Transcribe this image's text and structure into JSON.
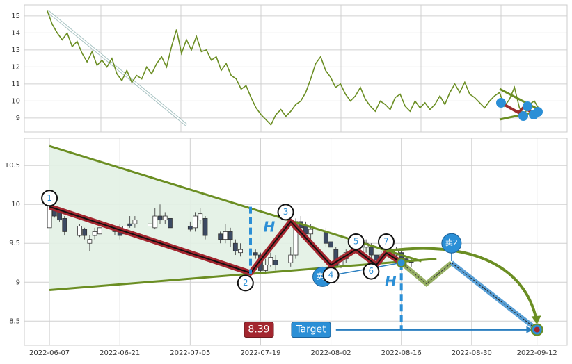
{
  "chart_data": [
    {
      "type": "line",
      "color": "#6b8e23",
      "ylim": [
        8.18,
        15.65
      ],
      "yticks": [
        9,
        10,
        11,
        12,
        13,
        14,
        15
      ],
      "grid": true,
      "values": [
        15.3,
        14.5,
        14.0,
        13.6,
        14.0,
        13.2,
        13.5,
        12.8,
        12.3,
        12.9,
        12.1,
        12.4,
        12.0,
        12.5,
        11.6,
        11.2,
        11.8,
        11.1,
        11.5,
        11.3,
        12.0,
        11.6,
        12.2,
        12.6,
        12.0,
        13.2,
        14.2,
        12.8,
        13.6,
        13.0,
        13.8,
        12.9,
        13.0,
        12.4,
        12.6,
        11.8,
        12.2,
        11.5,
        11.3,
        10.7,
        10.9,
        10.2,
        9.6,
        9.2,
        8.9,
        8.6,
        9.2,
        9.5,
        9.1,
        9.4,
        9.8,
        10.0,
        10.5,
        11.3,
        12.2,
        12.6,
        11.8,
        11.4,
        10.8,
        11.0,
        10.4,
        10.0,
        10.3,
        10.8,
        10.1,
        9.7,
        9.4,
        10.0,
        9.8,
        9.5,
        10.2,
        10.4,
        9.7,
        9.4,
        10.0,
        9.6,
        9.9,
        9.5,
        9.8,
        10.3,
        9.8,
        10.5,
        11.0,
        10.5,
        11.1,
        10.4,
        10.2,
        9.9,
        9.6,
        10.0,
        10.3,
        10.5,
        9.7,
        10.1,
        10.8,
        9.6,
        9.2,
        9.8,
        10.0,
        9.5
      ]
    },
    {
      "type": "candlestick",
      "ylim": [
        8.19,
        10.85
      ],
      "yticks": [
        8.5,
        9.0,
        9.5,
        10.0,
        10.5
      ],
      "grid": true,
      "xlim": [
        "2022-06-02",
        "2022-09-18"
      ],
      "xticks": [
        "2022-06-07",
        "2022-06-21",
        "2022-07-05",
        "2022-07-19",
        "2022-08-02",
        "2022-08-16",
        "2022-08-30",
        "2022-09-12"
      ],
      "x": [
        "2022-06-07",
        "2022-06-08",
        "2022-06-09",
        "2022-06-10",
        "2022-06-13",
        "2022-06-14",
        "2022-06-15",
        "2022-06-16",
        "2022-06-17",
        "2022-06-20",
        "2022-06-21",
        "2022-06-22",
        "2022-06-23",
        "2022-06-24",
        "2022-06-27",
        "2022-06-28",
        "2022-06-29",
        "2022-06-30",
        "2022-07-01",
        "2022-07-05",
        "2022-07-06",
        "2022-07-07",
        "2022-07-08",
        "2022-07-11",
        "2022-07-12",
        "2022-07-13",
        "2022-07-14",
        "2022-07-15",
        "2022-07-18",
        "2022-07-19",
        "2022-07-20",
        "2022-07-21",
        "2022-07-22",
        "2022-07-25",
        "2022-07-26",
        "2022-07-27",
        "2022-07-28",
        "2022-07-29",
        "2022-08-01",
        "2022-08-02",
        "2022-08-03",
        "2022-08-04",
        "2022-08-05",
        "2022-08-08",
        "2022-08-09",
        "2022-08-10",
        "2022-08-11",
        "2022-08-12",
        "2022-08-15",
        "2022-08-16",
        "2022-08-17",
        "2022-08-18"
      ],
      "open": [
        9.7,
        9.95,
        9.9,
        9.82,
        9.6,
        9.68,
        9.5,
        9.6,
        9.62,
        9.65,
        9.7,
        9.62,
        9.75,
        9.75,
        9.72,
        9.7,
        9.85,
        9.8,
        9.82,
        9.72,
        9.7,
        9.8,
        9.82,
        9.62,
        9.55,
        9.65,
        9.5,
        9.38,
        9.38,
        9.35,
        9.15,
        9.22,
        9.28,
        9.25,
        9.35,
        9.78,
        9.72,
        9.62,
        9.65,
        9.52,
        9.42,
        9.22,
        9.3,
        9.38,
        9.45,
        9.45,
        9.35,
        9.3,
        9.35,
        9.38,
        9.3,
        9.26
      ],
      "high": [
        10.05,
        9.97,
        9.92,
        9.85,
        9.75,
        9.7,
        9.6,
        9.7,
        9.75,
        9.72,
        9.75,
        9.75,
        9.85,
        9.85,
        9.8,
        9.95,
        10.0,
        9.9,
        9.9,
        9.78,
        9.9,
        9.95,
        9.85,
        9.65,
        9.75,
        9.7,
        9.55,
        9.5,
        9.42,
        9.38,
        9.3,
        9.38,
        9.35,
        9.45,
        9.82,
        9.85,
        9.78,
        9.75,
        9.7,
        9.6,
        9.45,
        9.35,
        9.42,
        9.5,
        9.55,
        9.5,
        9.38,
        9.4,
        9.45,
        9.42,
        9.32,
        9.3
      ],
      "low": [
        9.7,
        9.83,
        9.78,
        9.6,
        9.58,
        9.55,
        9.4,
        9.55,
        9.6,
        9.6,
        9.55,
        9.6,
        9.7,
        9.7,
        9.68,
        9.68,
        9.75,
        9.75,
        9.68,
        9.65,
        9.65,
        9.75,
        9.55,
        9.5,
        9.5,
        9.45,
        9.35,
        9.33,
        9.3,
        9.1,
        9.1,
        9.2,
        9.15,
        9.2,
        9.3,
        9.6,
        9.58,
        9.55,
        9.45,
        9.4,
        9.15,
        9.18,
        9.25,
        9.33,
        9.38,
        9.3,
        9.22,
        9.25,
        9.3,
        9.25,
        9.2,
        9.2
      ],
      "close": [
        10.0,
        9.85,
        9.8,
        9.65,
        9.72,
        9.6,
        9.55,
        9.65,
        9.7,
        9.68,
        9.6,
        9.72,
        9.72,
        9.8,
        9.75,
        9.85,
        9.8,
        9.85,
        9.7,
        9.68,
        9.85,
        9.88,
        9.6,
        9.55,
        9.65,
        9.55,
        9.4,
        9.42,
        9.35,
        9.15,
        9.22,
        9.32,
        9.22,
        9.35,
        9.78,
        9.7,
        9.62,
        9.68,
        9.5,
        9.45,
        9.2,
        9.3,
        9.38,
        9.45,
        9.5,
        9.35,
        9.28,
        9.35,
        9.4,
        9.3,
        9.26,
        9.25
      ],
      "points": [
        {
          "label": "1",
          "x": "2022-06-07",
          "y": 10.08
        },
        {
          "label": "2",
          "x": "2022-07-16",
          "y": 8.99
        },
        {
          "label": "3",
          "x": "2022-07-24",
          "y": 9.9
        },
        {
          "label": "4",
          "x": "2022-08-02",
          "y": 9.09
        },
        {
          "label": "5",
          "x": "2022-08-07",
          "y": 9.52
        },
        {
          "label": "6",
          "x": "2022-08-10",
          "y": 9.14
        },
        {
          "label": "7",
          "x": "2022-08-13",
          "y": 9.52
        }
      ],
      "height_label": "H",
      "sell1": "卖1",
      "sell2": "卖2",
      "target": {
        "label": "Target",
        "value": 8.39
      }
    }
  ]
}
